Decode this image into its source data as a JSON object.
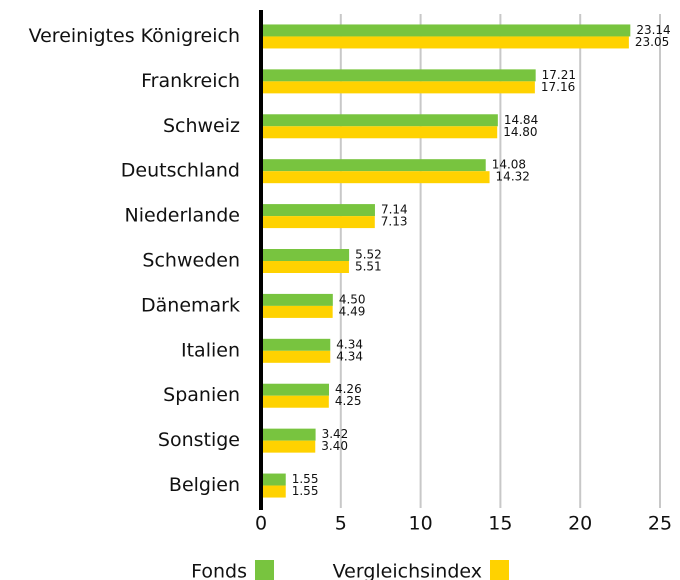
{
  "chart_data": {
    "type": "bar",
    "orientation": "horizontal",
    "categories": [
      "Vereinigtes Königreich",
      "Frankreich",
      "Schweiz",
      "Deutschland",
      "Niederlande",
      "Schweden",
      "Dänemark",
      "Italien",
      "Spanien",
      "Sonstige",
      "Belgien"
    ],
    "series": [
      {
        "name": "Fonds",
        "color": "#78c43f",
        "values": [
          23.14,
          17.21,
          14.84,
          14.08,
          7.14,
          5.52,
          4.5,
          4.34,
          4.26,
          3.42,
          1.55
        ],
        "value_labels": [
          "23.14",
          "17.21",
          "14.84",
          "14.08",
          "7.14",
          "5.52",
          "4.50",
          "4.34",
          "4.26",
          "3.42",
          "1.55"
        ]
      },
      {
        "name": "Vergleichsindex",
        "color": "#ffd200",
        "values": [
          23.05,
          17.16,
          14.8,
          14.32,
          7.13,
          5.51,
          4.49,
          4.34,
          4.25,
          3.4,
          1.55
        ],
        "value_labels": [
          "23.05",
          "17.16",
          "14.80",
          "14.32",
          "7.13",
          "5.51",
          "4.49",
          "4.34",
          "4.25",
          "3.40",
          "1.55"
        ]
      }
    ],
    "xlim": [
      0,
      25
    ],
    "xticks": [
      0,
      5,
      10,
      15,
      20,
      25
    ],
    "grid": true,
    "legend": "bottom"
  }
}
